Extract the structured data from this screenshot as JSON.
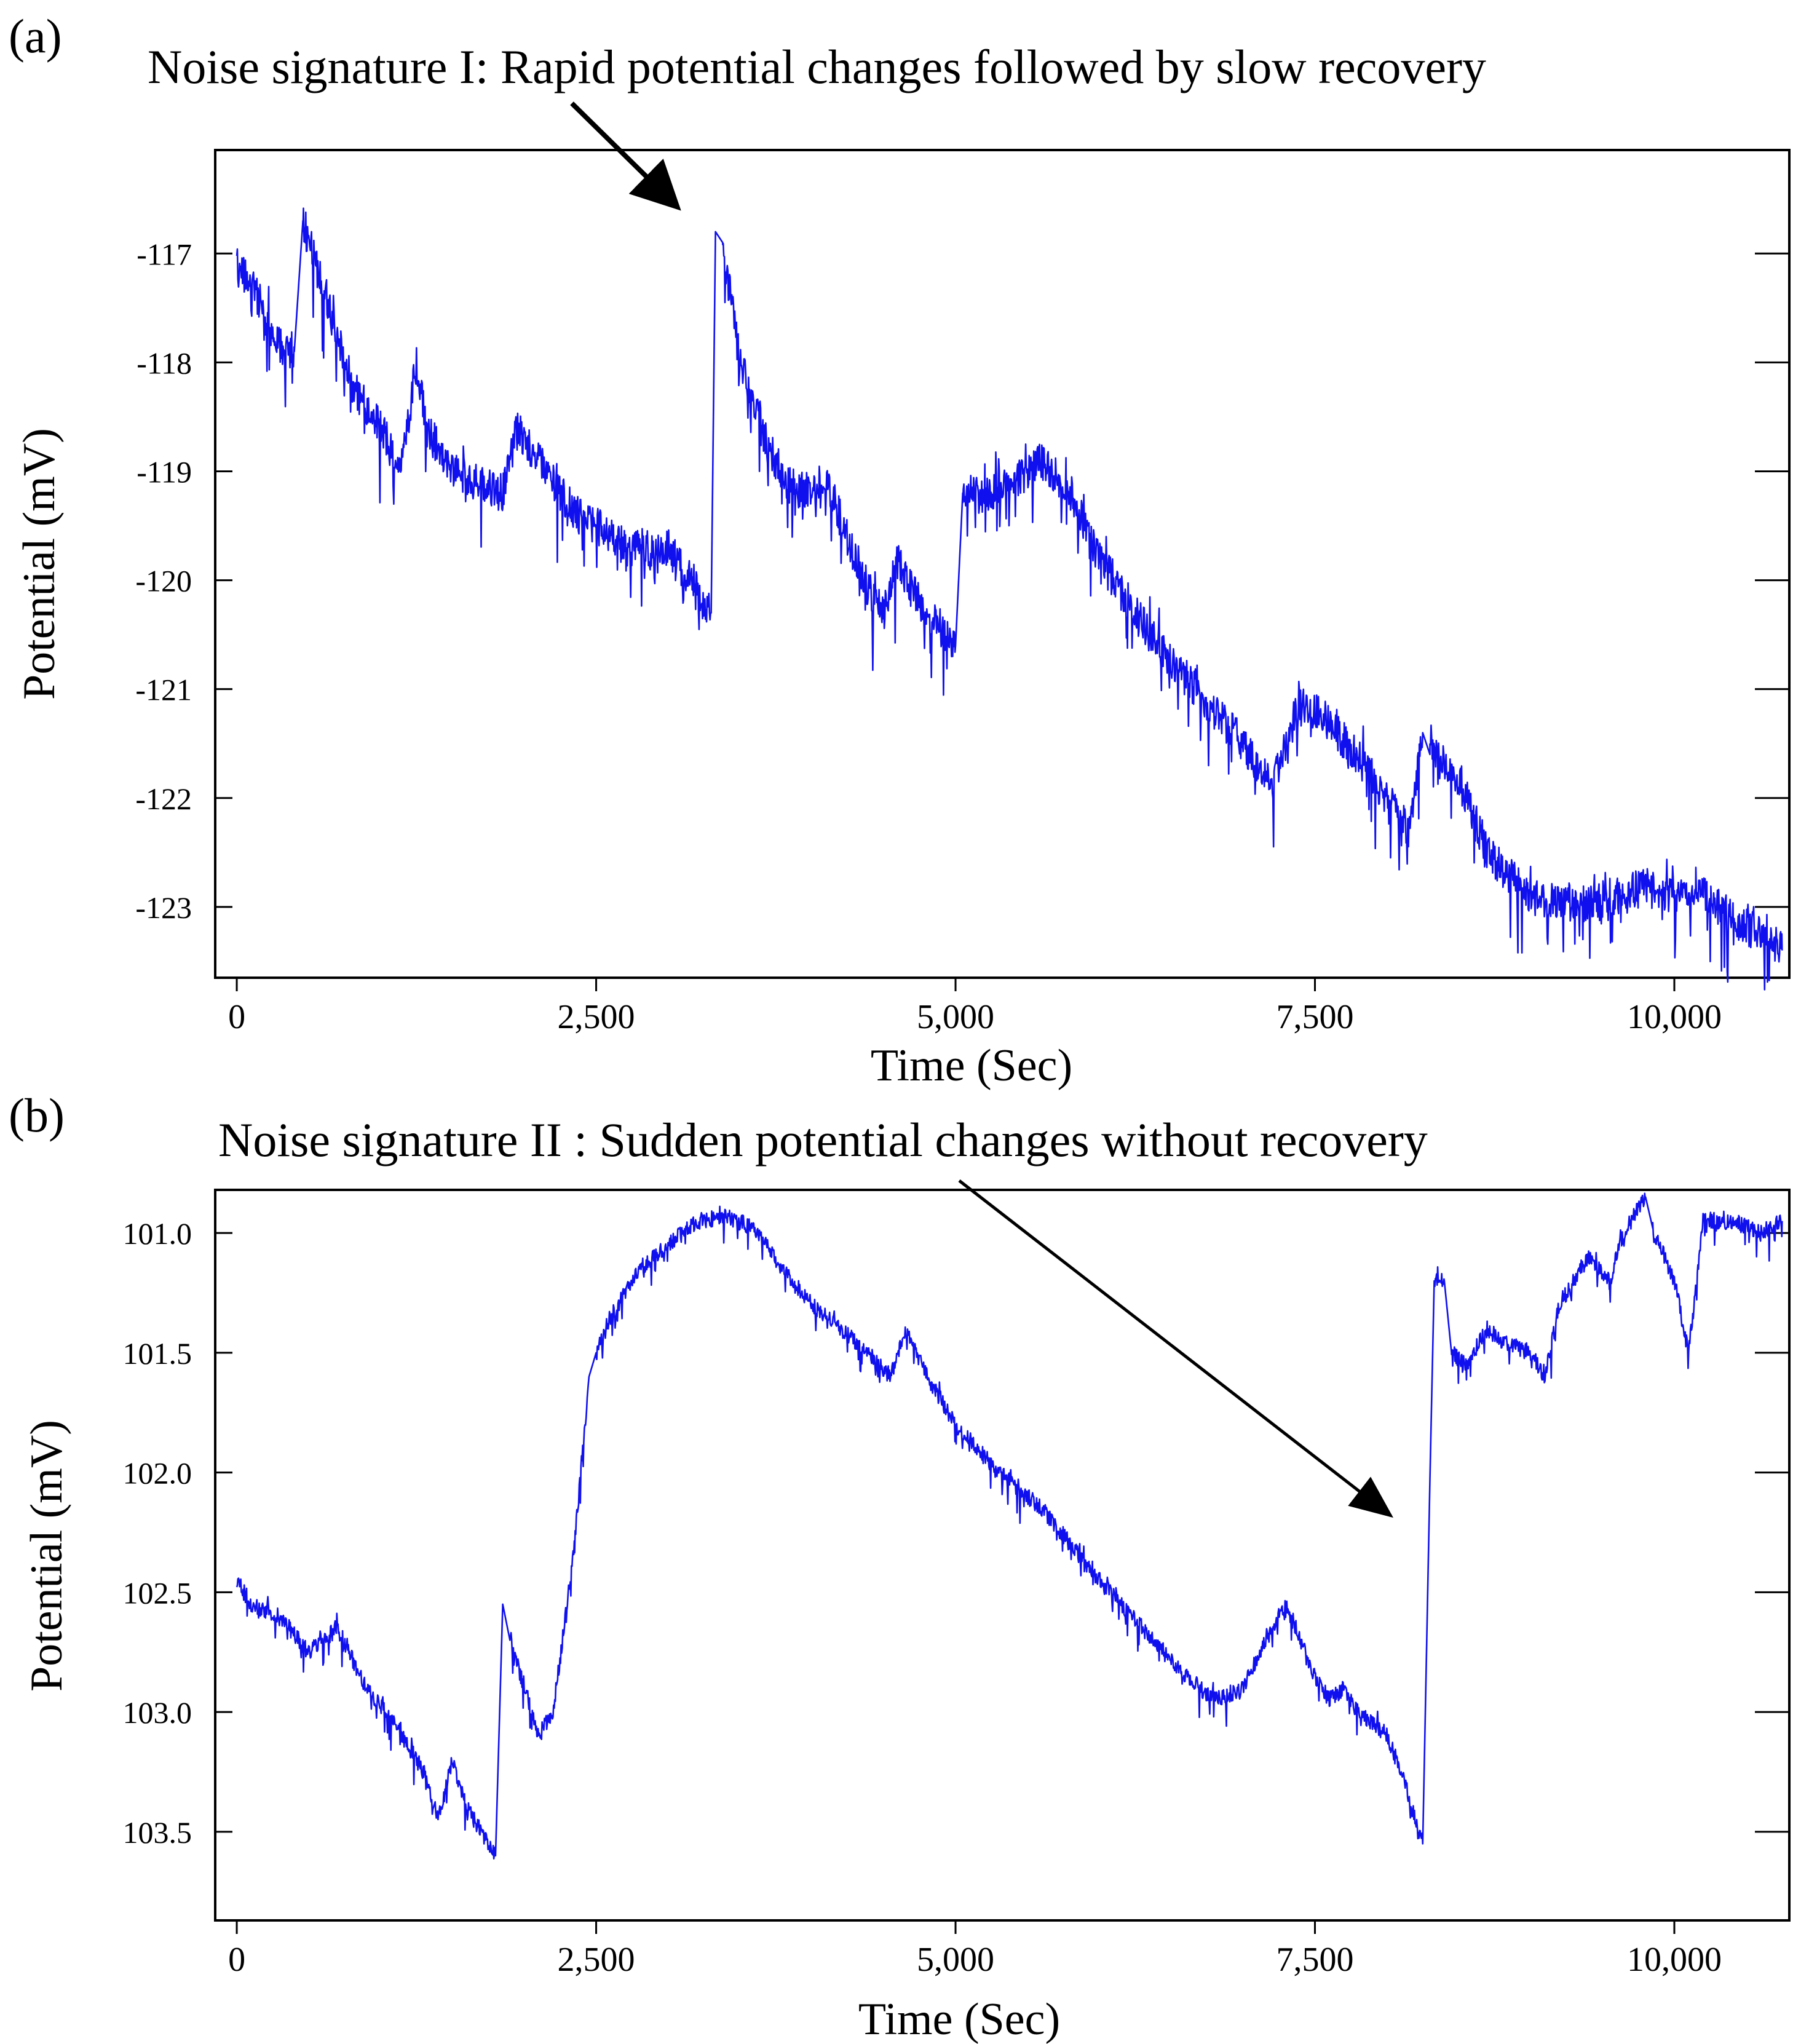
{
  "chart_data": [
    {
      "panel_label": "(a)",
      "type": "line",
      "annotation": "Noise signature I: Rapid potential changes followed by slow recovery",
      "xlabel": "Time (Sec)",
      "ylabel": "Potential (mV)",
      "xlim": [
        -150,
        10800
      ],
      "ylim": [
        -123.65,
        -116.05
      ],
      "y_inverted": false,
      "xticks": [
        0,
        2500,
        5000,
        7500,
        10000
      ],
      "xtick_labels": [
        "0",
        "2,500",
        "5,000",
        "7,500",
        "10,000"
      ],
      "yticks": [
        -117,
        -118,
        -119,
        -120,
        -121,
        -122,
        -123
      ],
      "ytick_labels": [
        "-117",
        "-118",
        "-119",
        "-120",
        "-121",
        "-122",
        "-123"
      ],
      "noise_amplitude": 0.35,
      "annotated_point": [
        3320,
        -116.6
      ],
      "line_color": "#1010ee",
      "series": [
        {
          "name": "Potential",
          "x": [
            0,
            150,
            250,
            400,
            460,
            800,
            1150,
            1250,
            1320,
            1500,
            1850,
            1950,
            2300,
            2700,
            3000,
            3300,
            3330,
            3380,
            3500,
            3700,
            3900,
            4100,
            4400,
            4500,
            4600,
            4700,
            4800,
            5000,
            5050,
            5200,
            5400,
            5600,
            5800,
            6000,
            6300,
            6600,
            7000,
            7200,
            7400,
            7600,
            7950,
            8150,
            8250,
            8300,
            8500,
            8700,
            9000,
            9500,
            9800,
            10000,
            10150,
            10300,
            10750
          ],
          "y": [
            -117.1,
            -117.4,
            -117.8,
            -117.9,
            -116.7,
            -118.2,
            -118.9,
            -118.0,
            -118.6,
            -119.0,
            -119.2,
            -118.6,
            -119.3,
            -119.7,
            -119.7,
            -120.3,
            -116.8,
            -116.9,
            -118.0,
            -118.8,
            -119.2,
            -119.1,
            -120.1,
            -120.3,
            -119.8,
            -120.1,
            -120.3,
            -120.6,
            -119.2,
            -119.2,
            -119.1,
            -118.9,
            -119.2,
            -119.8,
            -120.4,
            -120.9,
            -121.5,
            -121.9,
            -121.1,
            -121.3,
            -121.9,
            -122.3,
            -121.4,
            -121.6,
            -121.8,
            -122.5,
            -122.9,
            -123.0,
            -122.8,
            -122.9,
            -122.8,
            -123.0,
            -123.4
          ]
        }
      ]
    },
    {
      "panel_label": "(b)",
      "type": "line",
      "annotation": "Noise signature II : Sudden potential changes without recovery",
      "xlabel": "Time (Sec)",
      "ylabel": "Potential (mV)",
      "xlim": [
        -150,
        10800
      ],
      "ylim": [
        100.82,
        103.87
      ],
      "y_inverted": true,
      "xticks": [
        0,
        2500,
        5000,
        7500,
        10000
      ],
      "xtick_labels": [
        "0",
        "2,500",
        "5,000",
        "7,500",
        "10,000"
      ],
      "yticks": [
        101.0,
        101.5,
        102.0,
        102.5,
        103.0,
        103.5
      ],
      "ytick_labels": [
        "101.0",
        "101.5",
        "102.0",
        "102.5",
        "103.0",
        "103.5"
      ],
      "noise_amplitude": 0.07,
      "annotated_point": [
        8280,
        102.03
      ],
      "line_color": "#1010ee",
      "series": [
        {
          "name": "Potential",
          "x": [
            0,
            100,
            300,
            500,
            700,
            900,
            1100,
            1300,
            1400,
            1500,
            1600,
            1700,
            1800,
            1850,
            1900,
            2000,
            2100,
            2200,
            2350,
            2450,
            2500,
            2600,
            2800,
            3000,
            3200,
            3400,
            3600,
            3800,
            4000,
            4200,
            4400,
            4550,
            4650,
            4800,
            5000,
            5300,
            5600,
            6000,
            6300,
            6600,
            6800,
            7000,
            7200,
            7300,
            7500,
            7600,
            7700,
            7800,
            8000,
            8100,
            8250,
            8300,
            8330,
            8400,
            8450,
            8550,
            8700,
            8800,
            9000,
            9100,
            9200,
            9400,
            9550,
            9650,
            9800,
            9850,
            10000,
            10100,
            10200,
            10400,
            10600,
            10750
          ],
          "y": [
            102.45,
            102.55,
            102.6,
            102.75,
            102.65,
            102.9,
            103.05,
            103.25,
            103.45,
            103.2,
            103.4,
            103.5,
            103.6,
            102.55,
            102.7,
            102.9,
            103.1,
            103.0,
            102.3,
            101.6,
            101.5,
            101.35,
            101.15,
            101.05,
            100.95,
            100.93,
            100.98,
            101.15,
            101.3,
            101.4,
            101.5,
            101.6,
            101.4,
            101.6,
            101.8,
            102.0,
            102.15,
            102.45,
            102.65,
            102.85,
            102.95,
            102.9,
            102.65,
            102.55,
            102.85,
            102.95,
            102.9,
            103.0,
            103.1,
            103.25,
            103.55,
            102.03,
            101.2,
            101.2,
            101.5,
            101.55,
            101.4,
            101.45,
            101.5,
            101.6,
            101.3,
            101.1,
            101.2,
            101.0,
            100.85,
            100.98,
            101.2,
            101.5,
            100.95,
            100.95,
            101.0,
            100.95
          ]
        }
      ]
    }
  ]
}
